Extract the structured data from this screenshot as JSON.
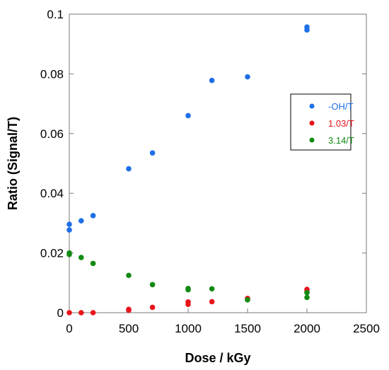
{
  "chart_data": {
    "type": "scatter",
    "xlabel": "Dose / kGy",
    "ylabel": "Ratio (Signal/T)",
    "xlim": [
      0,
      2500
    ],
    "ylim": [
      0,
      0.1
    ],
    "xticks": [
      0,
      500,
      1000,
      1500,
      2000,
      2500
    ],
    "yticks": [
      0,
      0.02,
      0.04,
      0.06,
      0.08,
      0.1
    ],
    "xtick_labels": [
      "0",
      "500",
      "1000",
      "1500",
      "2000",
      "2500"
    ],
    "ytick_labels": [
      "0",
      "0.02",
      "0.04",
      "0.06",
      "0.08",
      "0.1"
    ],
    "grid": false,
    "legend_position": "right",
    "series": [
      {
        "name": "-OH/T",
        "color": "#1f6fe8",
        "points": [
          {
            "x": 0,
            "y": 0.0277
          },
          {
            "x": 0,
            "y": 0.0296
          },
          {
            "x": 100,
            "y": 0.0308
          },
          {
            "x": 200,
            "y": 0.0325
          },
          {
            "x": 500,
            "y": 0.0482
          },
          {
            "x": 700,
            "y": 0.0535
          },
          {
            "x": 1000,
            "y": 0.066
          },
          {
            "x": 1200,
            "y": 0.0778
          },
          {
            "x": 1500,
            "y": 0.079
          },
          {
            "x": 2000,
            "y": 0.0947
          },
          {
            "x": 2000,
            "y": 0.0957
          }
        ]
      },
      {
        "name": "1.03/T",
        "color": "#e8141b",
        "points": [
          {
            "x": 0,
            "y": 0.0
          },
          {
            "x": 100,
            "y": 0.0
          },
          {
            "x": 200,
            "y": 0.0
          },
          {
            "x": 500,
            "y": 0.0008
          },
          {
            "x": 500,
            "y": 0.0011
          },
          {
            "x": 700,
            "y": 0.0018
          },
          {
            "x": 1000,
            "y": 0.0028
          },
          {
            "x": 1000,
            "y": 0.0036
          },
          {
            "x": 1200,
            "y": 0.0037
          },
          {
            "x": 1500,
            "y": 0.0048
          },
          {
            "x": 2000,
            "y": 0.007
          },
          {
            "x": 2000,
            "y": 0.0078
          }
        ]
      },
      {
        "name": "3.14/T",
        "color": "#128a12",
        "points": [
          {
            "x": 0,
            "y": 0.0195
          },
          {
            "x": 0,
            "y": 0.02
          },
          {
            "x": 100,
            "y": 0.0185
          },
          {
            "x": 200,
            "y": 0.0165
          },
          {
            "x": 500,
            "y": 0.0125
          },
          {
            "x": 700,
            "y": 0.0094
          },
          {
            "x": 1000,
            "y": 0.0077
          },
          {
            "x": 1000,
            "y": 0.0081
          },
          {
            "x": 1200,
            "y": 0.008
          },
          {
            "x": 1500,
            "y": 0.0043
          },
          {
            "x": 2000,
            "y": 0.0051
          },
          {
            "x": 2000,
            "y": 0.0067
          }
        ]
      }
    ]
  }
}
